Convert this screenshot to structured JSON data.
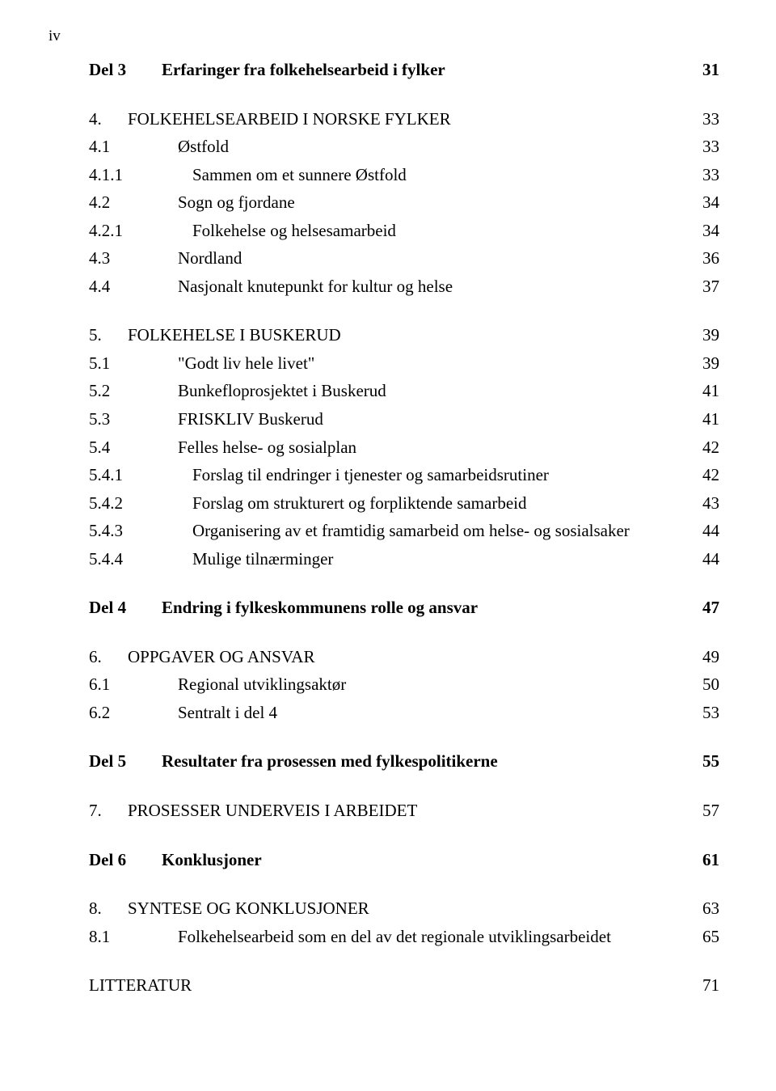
{
  "page_marker": "iv",
  "toc": [
    {
      "num": "Del 3",
      "title": "Erfaringer fra folkehelsearbeid i fylker",
      "page": "31",
      "bold": true,
      "numClass": "w-del",
      "spacing": ""
    },
    {
      "num": "4.",
      "title": "FOLKEHELSEARBEID I NORSKE FYLKER",
      "page": "33",
      "bold": false,
      "numClass": "w-ch",
      "spacing": "sp-before-lg"
    },
    {
      "num": "4.1",
      "title": "Østfold",
      "page": "33",
      "bold": false,
      "numClass": "w-s1i",
      "spacing": ""
    },
    {
      "num": "4.1.1",
      "title": "Sammen om et sunnere Østfold",
      "page": "33",
      "bold": false,
      "numClass": "w-s2i",
      "spacing": ""
    },
    {
      "num": "4.2",
      "title": "Sogn og fjordane",
      "page": "34",
      "bold": false,
      "numClass": "w-s1i",
      "spacing": ""
    },
    {
      "num": "4.2.1",
      "title": "Folkehelse og helsesamarbeid",
      "page": "34",
      "bold": false,
      "numClass": "w-s2i",
      "spacing": ""
    },
    {
      "num": "4.3",
      "title": "Nordland",
      "page": "36",
      "bold": false,
      "numClass": "w-s1i",
      "spacing": ""
    },
    {
      "num": "4.4",
      "title": "Nasjonalt knutepunkt for kultur og helse",
      "page": "37",
      "bold": false,
      "numClass": "w-s1i",
      "spacing": ""
    },
    {
      "num": "5.",
      "title": "FOLKEHELSE I BUSKERUD",
      "page": "39",
      "bold": false,
      "numClass": "w-ch",
      "spacing": "sp-before-lg"
    },
    {
      "num": "5.1",
      "title": "\"Godt liv hele livet\"",
      "page": "39",
      "bold": false,
      "numClass": "w-s1i",
      "spacing": ""
    },
    {
      "num": "5.2",
      "title": "Bunkefloprosjektet i Buskerud",
      "page": "41",
      "bold": false,
      "numClass": "w-s1i",
      "spacing": ""
    },
    {
      "num": "5.3",
      "title": "FRISKLIV Buskerud",
      "page": "41",
      "bold": false,
      "numClass": "w-s1i",
      "spacing": ""
    },
    {
      "num": "5.4",
      "title": "Felles helse- og sosialplan",
      "page": "42",
      "bold": false,
      "numClass": "w-s1i",
      "spacing": ""
    },
    {
      "num": "5.4.1",
      "title": "Forslag til endringer i tjenester og samarbeidsrutiner",
      "page": "42",
      "bold": false,
      "numClass": "w-s2i",
      "spacing": ""
    },
    {
      "num": "5.4.2",
      "title": "Forslag om strukturert og forpliktende samarbeid",
      "page": "43",
      "bold": false,
      "numClass": "w-s2i",
      "spacing": ""
    },
    {
      "num": "5.4.3",
      "title": "Organisering av et framtidig samarbeid om helse- og sosialsaker",
      "page": "44",
      "bold": false,
      "numClass": "w-s2i",
      "spacing": ""
    },
    {
      "num": "5.4.4",
      "title": "Mulige tilnærminger",
      "page": "44",
      "bold": false,
      "numClass": "w-s2i",
      "spacing": ""
    },
    {
      "num": "Del 4",
      "title": "Endring i fylkeskommunens rolle og ansvar",
      "page": "47",
      "bold": true,
      "numClass": "w-del",
      "spacing": "sp-before-lg"
    },
    {
      "num": "6.",
      "title": "OPPGAVER OG ANSVAR",
      "page": "49",
      "bold": false,
      "numClass": "w-ch",
      "spacing": "sp-before-lg"
    },
    {
      "num": "6.1",
      "title": "Regional utviklingsaktør",
      "page": "50",
      "bold": false,
      "numClass": "w-s1i",
      "spacing": ""
    },
    {
      "num": "6.2",
      "title": "Sentralt i del 4",
      "page": "53",
      "bold": false,
      "numClass": "w-s1i",
      "spacing": ""
    },
    {
      "num": "Del 5",
      "title": "Resultater fra prosessen med fylkespolitikerne",
      "page": "55",
      "bold": true,
      "numClass": "w-del",
      "spacing": "sp-before-lg"
    },
    {
      "num": "7.",
      "title": "PROSESSER UNDERVEIS I ARBEIDET",
      "page": "57",
      "bold": false,
      "numClass": "w-ch",
      "spacing": "sp-before-lg"
    },
    {
      "num": "Del 6",
      "title": "Konklusjoner",
      "page": "61",
      "bold": true,
      "numClass": "w-del",
      "spacing": "sp-before-lg"
    },
    {
      "num": "8.",
      "title": "SYNTESE OG KONKLUSJONER",
      "page": "63",
      "bold": false,
      "numClass": "w-ch",
      "spacing": "sp-before-lg"
    },
    {
      "num": "8.1",
      "title": "Folkehelsearbeid som en del av det regionale utviklingsarbeidet",
      "page": "65",
      "bold": false,
      "numClass": "w-s1i",
      "spacing": ""
    }
  ],
  "literature": {
    "label": "LITTERATUR",
    "page": "71"
  }
}
